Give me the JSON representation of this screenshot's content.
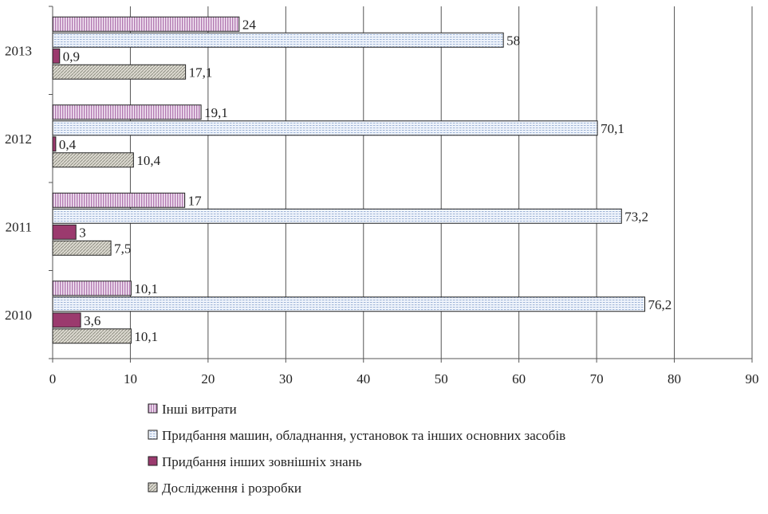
{
  "chart_data": {
    "type": "bar",
    "orientation": "horizontal",
    "categories": [
      "2010",
      "2011",
      "2012",
      "2013"
    ],
    "series": [
      {
        "name": "Інші витрати",
        "values": [
          10.1,
          17,
          19.1,
          24
        ],
        "labels": [
          "10,1",
          "17",
          "19,1",
          "24"
        ],
        "color": "#c8a2c8",
        "pattern": "vertical-lines"
      },
      {
        "name": "Придбання машин, обладнання, установок та інших основних засобів",
        "values": [
          76.2,
          73.2,
          70.1,
          58
        ],
        "labels": [
          "76,2",
          "73,2",
          "70,1",
          "58"
        ],
        "color": "#dde6f3",
        "pattern": "horizontal-dots"
      },
      {
        "name": "Придбання інших зовнішніх знань",
        "values": [
          3.6,
          3,
          0.4,
          0.9
        ],
        "labels": [
          "3,6",
          "3",
          "0,4",
          "0,9"
        ],
        "color": "#9b3a6e",
        "pattern": "solid"
      },
      {
        "name": "Дослідження і розробки",
        "values": [
          10.1,
          7.5,
          10.4,
          17.1
        ],
        "labels": [
          "10,1",
          "7,5",
          "10,4",
          "17,1"
        ],
        "color": "#c9c9bd",
        "pattern": "diagonal"
      }
    ],
    "xlim": [
      0,
      90
    ],
    "xticks": [
      0,
      10,
      20,
      30,
      40,
      50,
      60,
      70,
      80,
      90
    ],
    "grid": "vertical",
    "legend_position": "bottom"
  }
}
